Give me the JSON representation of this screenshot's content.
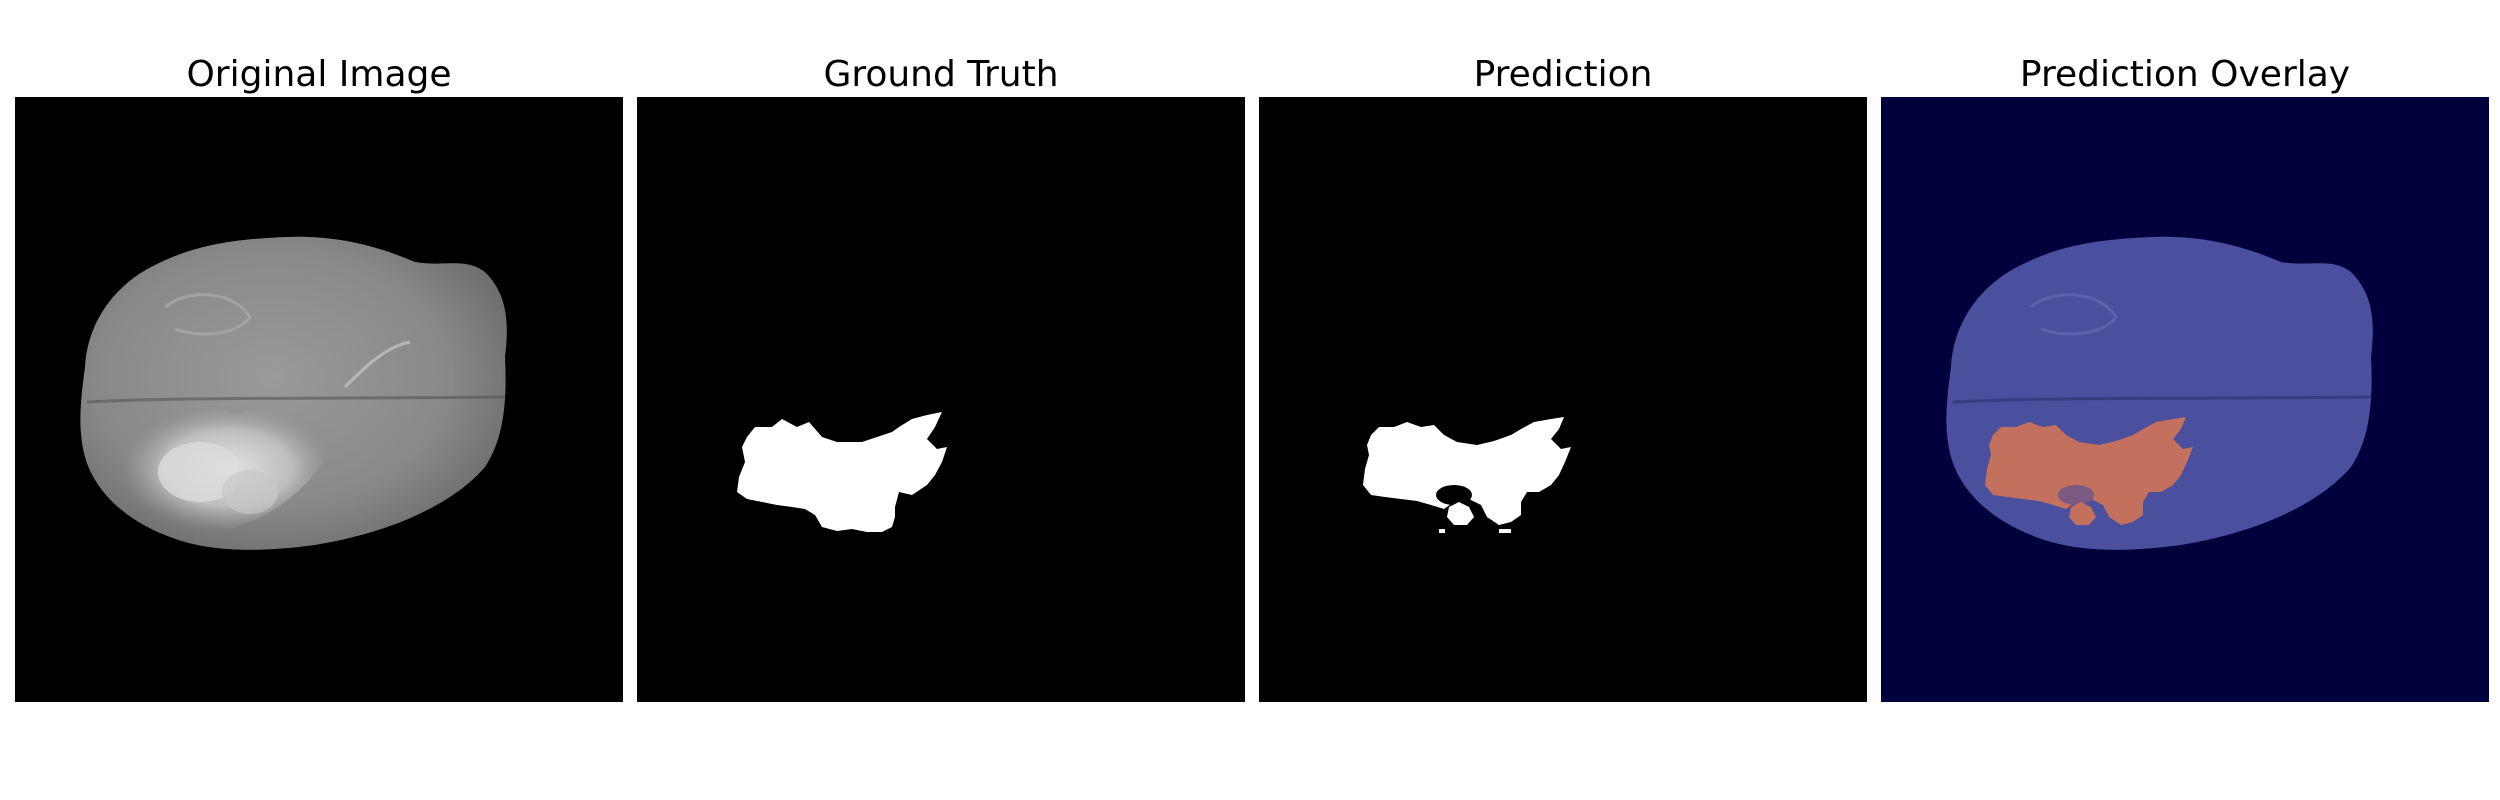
{
  "figure": {
    "panels": [
      {
        "title": "Original Image",
        "kind": "mri-slice"
      },
      {
        "title": "Ground Truth",
        "kind": "binary-mask"
      },
      {
        "title": "Prediction",
        "kind": "binary-mask"
      },
      {
        "title": "Prediction Overlay",
        "kind": "overlay"
      }
    ]
  },
  "colors": {
    "background": "#ffffff",
    "image_background": "#000000",
    "mask_foreground": "#ffffff",
    "overlay_background": "#00003c",
    "overlay_brain": "#4a4f9e",
    "overlay_tumor": "#c4705e"
  }
}
